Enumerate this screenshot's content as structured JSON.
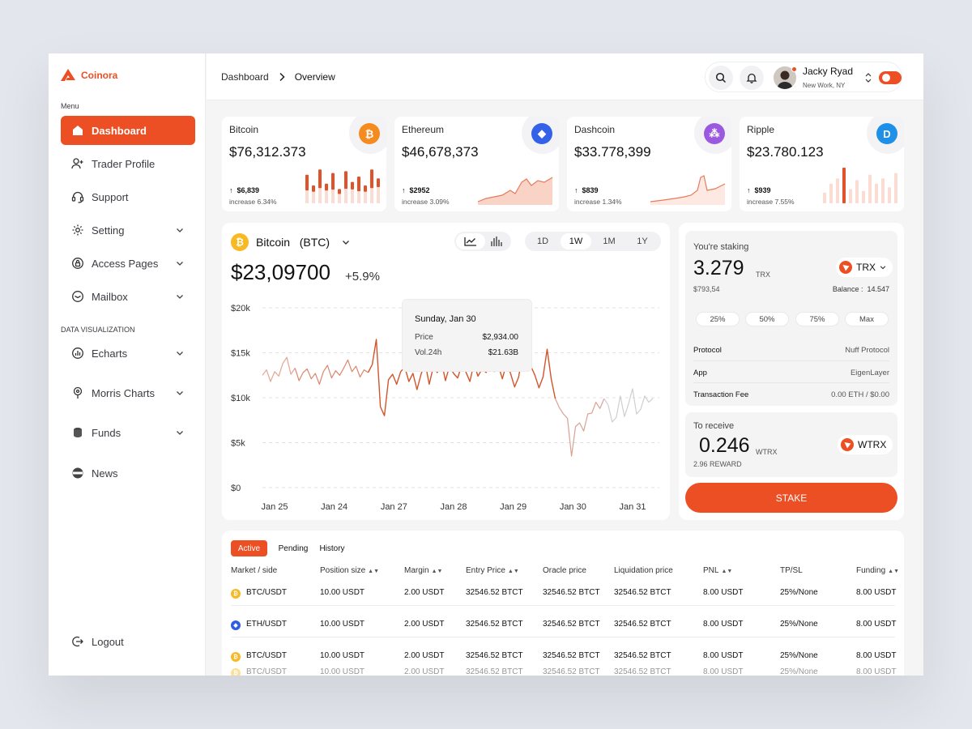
{
  "brand": {
    "name": "Coinora",
    "color": "#ec4f23"
  },
  "sidebar": {
    "menu_label": "Menu",
    "items": [
      {
        "label": "Dashboard",
        "icon": "home-icon",
        "active": true
      },
      {
        "label": "Trader Profile",
        "icon": "user-add-icon"
      },
      {
        "label": "Support",
        "icon": "headset-icon"
      },
      {
        "label": "Setting",
        "icon": "gear-icon",
        "expandable": true
      },
      {
        "label": "Access Pages",
        "icon": "lock-icon",
        "expandable": true
      },
      {
        "label": "Mailbox",
        "icon": "mail-icon",
        "expandable": true
      }
    ],
    "dataviz_label": "DATA VISUALIZATION",
    "dataviz_items": [
      {
        "label": "Echarts",
        "icon": "chart-icon",
        "expandable": true
      },
      {
        "label": "Morris Charts",
        "icon": "pin-icon",
        "expandable": true
      },
      {
        "label": "Funds",
        "icon": "coins-icon",
        "expandable": true
      },
      {
        "label": "News",
        "icon": "news-icon"
      }
    ],
    "logout": "Logout"
  },
  "header": {
    "breadcrumb": [
      "Dashboard",
      "Overview"
    ],
    "user": {
      "name": "Jacky Ryad",
      "location": "New Work, NY"
    }
  },
  "coins": [
    {
      "name": "Bitcoin",
      "price": "$76,312.373",
      "change": "$6,839",
      "increase": "increase 6.34%",
      "symbol": "₿",
      "color": "#f58a1f",
      "spark": "bars"
    },
    {
      "name": "Ethereum",
      "price": "$46,678,373",
      "change": "$2952",
      "increase": "increase 3.09%",
      "symbol": "◆",
      "color": "#3361e8",
      "spark": "area"
    },
    {
      "name": "Dashcoin",
      "price": "$33.778,399",
      "change": "$839",
      "increase": "increase 1.34%",
      "symbol": "⁂",
      "color": "#9b59e0",
      "spark": "line"
    },
    {
      "name": "Ripple",
      "price": "$23.780.123",
      "change": "$939",
      "increase": "increase 7.55%",
      "symbol": "D",
      "color": "#1f90e8",
      "spark": "bars2"
    }
  ],
  "chart": {
    "coin_name": "Bitcoin",
    "coin_ticker": "(BTC)",
    "price": "$23,09700",
    "change": "+5.9%",
    "timeframes": [
      "1D",
      "1W",
      "1M",
      "1Y"
    ],
    "active_timeframe": "1W",
    "tooltip": {
      "date": "Sunday, Jan 30",
      "price_label": "Price",
      "price": "$2,934.00",
      "vol_label": "Vol.24h",
      "vol": "$21.63B"
    }
  },
  "chart_data": {
    "type": "line",
    "x_labels": [
      "Jan 25",
      "Jan 24",
      "Jan 27",
      "Jan 28",
      "Jan 29",
      "Jan 30",
      "Jan 31"
    ],
    "y_ticks": [
      "$20k",
      "$15k",
      "$10k",
      "$5k",
      "$0"
    ],
    "ylim": [
      0,
      20000
    ],
    "grid": true,
    "series": [
      {
        "color": "#d4592e",
        "values": [
          12500,
          13100,
          11800,
          12900,
          12400,
          13800,
          14500,
          12600,
          13300,
          11900,
          12800,
          13200,
          12100,
          12700,
          11500,
          12900,
          13600,
          12200,
          13000,
          12500,
          13300,
          14200,
          12900,
          13500,
          12300,
          13100,
          12800,
          13700,
          16500,
          9000,
          8000,
          12000,
          12600,
          11500,
          12900,
          13400,
          11800,
          12700,
          10900,
          12600,
          13900,
          11500,
          13400,
          12800,
          14100,
          11900,
          13500,
          12700,
          12200,
          13600,
          12900,
          11800,
          13800,
          12400,
          13200,
          12800,
          14400,
          12900,
          13600,
          12100,
          13800,
          12700,
          11200,
          12300,
          15000,
          15600,
          13500,
          12500,
          11100,
          12300,
          15400,
          12100,
          9900,
          8900,
          8200,
          7700,
          3500,
          6800,
          7200,
          6300,
          8200,
          8300,
          9500,
          8800,
          9900,
          9200,
          7300,
          7800,
          10200,
          7900,
          9300,
          11000,
          8200,
          8700,
          10200,
          9500,
          9900
        ]
      }
    ]
  },
  "staking": {
    "label": "You're staking",
    "amount": "3.279",
    "unit": "TRX",
    "usd": "$793,54",
    "balance_label": "Balance :",
    "balance": "14.547",
    "token": "TRX",
    "percents": [
      "25%",
      "50%",
      "75%",
      "Max"
    ],
    "rows": [
      {
        "k": "Protocol",
        "v": "Nuff Protocol"
      },
      {
        "k": "App",
        "v": "EigenLayer"
      },
      {
        "k": "Transaction Fee",
        "v": "0.00 ETH / $0.00"
      }
    ],
    "receive_label": "To receive",
    "receive_amount": "0.246",
    "receive_unit": "WTRX",
    "reward": "2.96 REWARD",
    "receive_token": "WTRX",
    "button": "STAKE"
  },
  "table": {
    "tabs": [
      "Active",
      "Pending",
      "History"
    ],
    "headers": [
      "Market / side",
      "Position size",
      "Margin",
      "Entry Price",
      "Oracle price",
      "Liquidation price",
      "PNL",
      "TP/SL",
      "Funding"
    ],
    "rows": [
      {
        "coin": "btc",
        "cells": [
          "BTC/USDT",
          "10.00 USDT",
          "2.00 USDT",
          "32546.52 BTCT",
          "32546.52 BTCT",
          "32546.52 BTCT",
          "8.00 USDT",
          "25%/None",
          "8.00 USDT"
        ]
      },
      {
        "coin": "eth",
        "cells": [
          "ETH/USDT",
          "10.00 USDT",
          "2.00 USDT",
          "32546.52 BTCT",
          "32546.52 BTCT",
          "32546.52 BTCT",
          "8.00 USDT",
          "25%/None",
          "8.00 USDT"
        ]
      },
      {
        "coin": "btc",
        "cells": [
          "BTC/USDT",
          "10.00 USDT",
          "2.00 USDT",
          "32546.52 BTCT",
          "32546.52 BTCT",
          "32546.52 BTCT",
          "8.00 USDT",
          "25%/None",
          "8.00 USDT"
        ]
      },
      {
        "coin": "btc",
        "cells": [
          "BTC/USDT",
          "10.00 USDT",
          "2.00 USDT",
          "32546.52 BTCT",
          "32546.52 BTCT",
          "32546.52 BTCT",
          "8.00 USDT",
          "25%/None",
          "8.00 USDT"
        ]
      }
    ]
  }
}
